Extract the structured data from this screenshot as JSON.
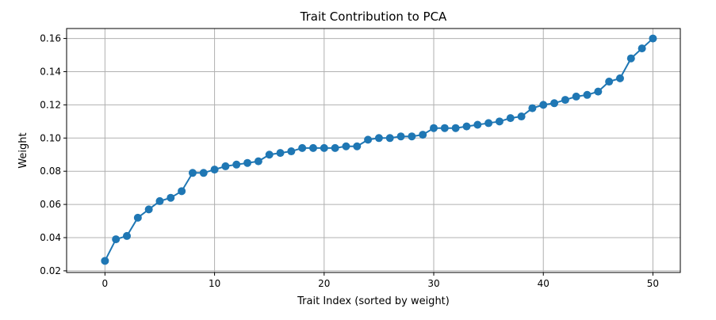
{
  "chart_data": {
    "type": "line",
    "title": "Trait Contribution to PCA",
    "xlabel": "Trait Index (sorted by weight)",
    "ylabel": "Weight",
    "xlim": [
      -3.5,
      52.5
    ],
    "ylim": [
      0.019,
      0.166
    ],
    "x_ticks": [
      0,
      10,
      20,
      30,
      40,
      50
    ],
    "x_tick_labels": [
      "0",
      "10",
      "20",
      "30",
      "40",
      "50"
    ],
    "y_ticks": [
      0.02,
      0.04,
      0.06,
      0.08,
      0.1,
      0.12,
      0.14,
      0.16
    ],
    "y_tick_labels": [
      "0.02",
      "0.04",
      "0.06",
      "0.08",
      "0.10",
      "0.12",
      "0.14",
      "0.16"
    ],
    "grid": true,
    "series": [
      {
        "color": "#1f77b4",
        "marker": "circle",
        "x": [
          0,
          1,
          2,
          3,
          4,
          5,
          6,
          7,
          8,
          9,
          10,
          11,
          12,
          13,
          14,
          15,
          16,
          17,
          18,
          19,
          20,
          21,
          22,
          23,
          24,
          25,
          26,
          27,
          28,
          29,
          30,
          31,
          32,
          33,
          34,
          35,
          36,
          37,
          38,
          39,
          40,
          41,
          42,
          43,
          44,
          45,
          46,
          47,
          48,
          49,
          50
        ],
        "values": [
          0.026,
          0.039,
          0.041,
          0.052,
          0.057,
          0.062,
          0.064,
          0.068,
          0.079,
          0.079,
          0.081,
          0.083,
          0.084,
          0.085,
          0.086,
          0.09,
          0.091,
          0.092,
          0.094,
          0.094,
          0.094,
          0.094,
          0.095,
          0.095,
          0.099,
          0.1,
          0.1,
          0.101,
          0.101,
          0.102,
          0.106,
          0.106,
          0.106,
          0.107,
          0.108,
          0.109,
          0.11,
          0.112,
          0.113,
          0.118,
          0.12,
          0.121,
          0.123,
          0.125,
          0.126,
          0.128,
          0.134,
          0.136,
          0.148,
          0.154,
          0.16
        ]
      }
    ]
  }
}
